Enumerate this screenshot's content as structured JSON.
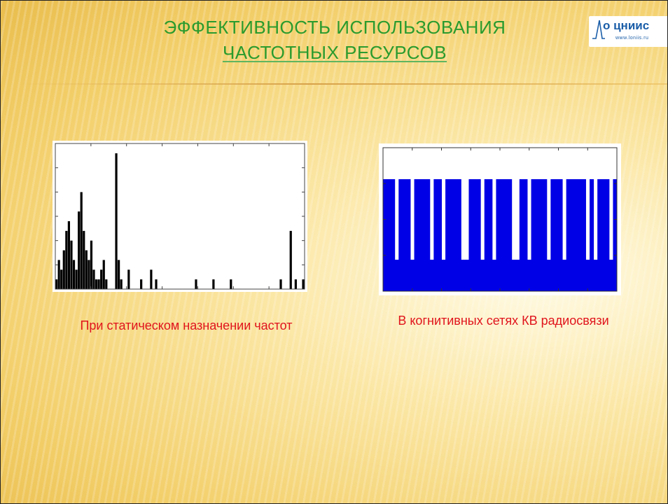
{
  "slide": {
    "title_line1": "ЭФФЕКТИВНОСТЬ ИСПОЛЬЗОВАНИЯ",
    "title_line2": "ЧАСТОТНЫХ РЕСУРСОВ",
    "logo_text": "о цниис",
    "logo_url": "www.loniis.ru",
    "caption_left": "При статическом назначении частот",
    "caption_right": "В когнитивных сетях КВ радиосвязи",
    "colors": {
      "title": "#2a9b2e",
      "caption": "#e0141c",
      "spectrum_static": "#000000",
      "spectrum_cognitive": "#0000e6"
    }
  },
  "chart_data": [
    {
      "type": "bar",
      "grid": false,
      "series": [
        {
          "values": [
            1,
            3,
            2,
            4,
            6,
            7,
            5,
            3,
            2,
            8,
            10,
            6,
            4,
            3,
            5,
            2,
            1,
            1,
            2,
            3,
            1,
            0,
            0,
            0,
            14,
            3,
            1,
            0,
            0,
            2,
            0,
            0,
            0,
            0,
            1,
            0,
            0,
            0,
            2,
            0,
            1,
            0,
            0,
            0,
            0,
            0,
            0,
            0,
            0,
            0,
            0,
            0,
            0,
            0,
            0,
            0,
            1,
            0,
            0,
            0,
            0,
            0,
            0,
            1,
            0,
            0,
            0,
            0,
            0,
            0,
            1,
            0,
            0,
            0,
            0,
            0,
            0,
            0,
            0,
            0,
            0,
            0,
            0,
            0,
            0,
            0,
            0,
            0,
            0,
            0,
            1,
            0,
            0,
            0,
            6,
            0,
            1,
            0,
            0,
            1
          ]
        }
      ]
    },
    {
      "type": "area",
      "grid": false,
      "series": [
        {
          "values": [
            1,
            1,
            1,
            0,
            1,
            1,
            1,
            0,
            1,
            1,
            1,
            1,
            0,
            1,
            1,
            0,
            1,
            1,
            1,
            1,
            0,
            0,
            1,
            1,
            1,
            0,
            1,
            1,
            0,
            1,
            1,
            1,
            1,
            0,
            0,
            1,
            1,
            0,
            1,
            1,
            1,
            1,
            0,
            1,
            1,
            1,
            0,
            1,
            1,
            1,
            1,
            1,
            0,
            1,
            0,
            1,
            1,
            1,
            0,
            1
          ]
        }
      ]
    }
  ]
}
